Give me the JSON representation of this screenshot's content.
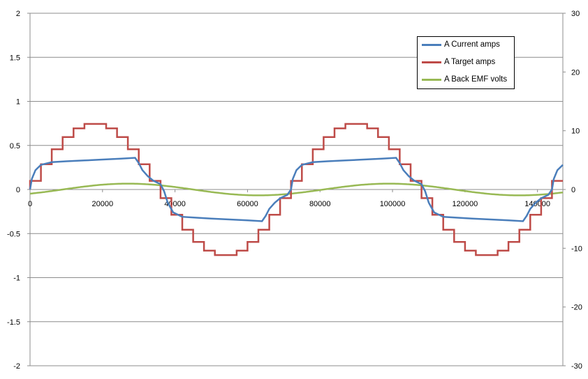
{
  "chart_data": {
    "type": "line",
    "title": "",
    "xlabel": "",
    "ylabel": "",
    "xlim": [
      0,
      147000
    ],
    "ylim": [
      -2,
      2
    ],
    "y2lim": [
      -30,
      30
    ],
    "x_ticks": [
      0,
      20000,
      40000,
      60000,
      80000,
      100000,
      120000,
      140000
    ],
    "x_tick_labels": [
      "0",
      "20000",
      "40000",
      "60000",
      "80000",
      "100000",
      "120000",
      "140000"
    ],
    "y_ticks": [
      2,
      1.5,
      1,
      0.5,
      0,
      -0.5,
      -1,
      -1.5,
      -2
    ],
    "y_tick_labels": [
      "2",
      "1.5",
      "1",
      "0.5",
      "0",
      "-0.5",
      "-1",
      "-1.5",
      "-2"
    ],
    "y2_ticks": [
      30,
      20,
      10,
      0,
      -10,
      -20,
      -30
    ],
    "y2_tick_labels": [
      "30",
      "20",
      "10",
      "0",
      "-10",
      "-20",
      "-30"
    ],
    "grid": "horizontal",
    "legend_position": "top-right",
    "period": 72000,
    "series": [
      {
        "name": "A Current amps",
        "axis": "left",
        "color": "#4a7ebb",
        "shape": "first-order step response to target phase, plateau ~0.32 rising to ~0.36",
        "x": [
          0,
          500,
          1500,
          3000,
          6000,
          10000,
          15000,
          20000,
          25000,
          29000,
          30000,
          31000,
          32500,
          34000,
          36000,
          37000,
          38000,
          39500,
          42000,
          46000,
          50000,
          55000,
          60000,
          64000,
          65000,
          66000,
          67500,
          69000,
          71000,
          72000
        ],
        "values": [
          0.0,
          0.12,
          0.22,
          0.28,
          0.31,
          0.32,
          0.33,
          0.34,
          0.35,
          0.36,
          0.3,
          0.22,
          0.15,
          0.1,
          0.06,
          -0.02,
          -0.15,
          -0.26,
          -0.31,
          -0.32,
          -0.33,
          -0.34,
          -0.35,
          -0.36,
          -0.3,
          -0.22,
          -0.15,
          -0.1,
          -0.06,
          0.0
        ]
      },
      {
        "name": "A Target amps",
        "axis": "left",
        "color": "#be4b48",
        "shape": "24-step quantized sine, amplitude 0.75, period 72000",
        "amplitude": 0.75,
        "steps_per_period": 24
      },
      {
        "name": "A Back EMF volts",
        "axis": "right",
        "color": "#98b954",
        "shape": "sine, amplitude ~1 V, period 72000, peak near x=27000",
        "amplitude": 1.0,
        "phase_peak_x": 27000
      }
    ]
  }
}
